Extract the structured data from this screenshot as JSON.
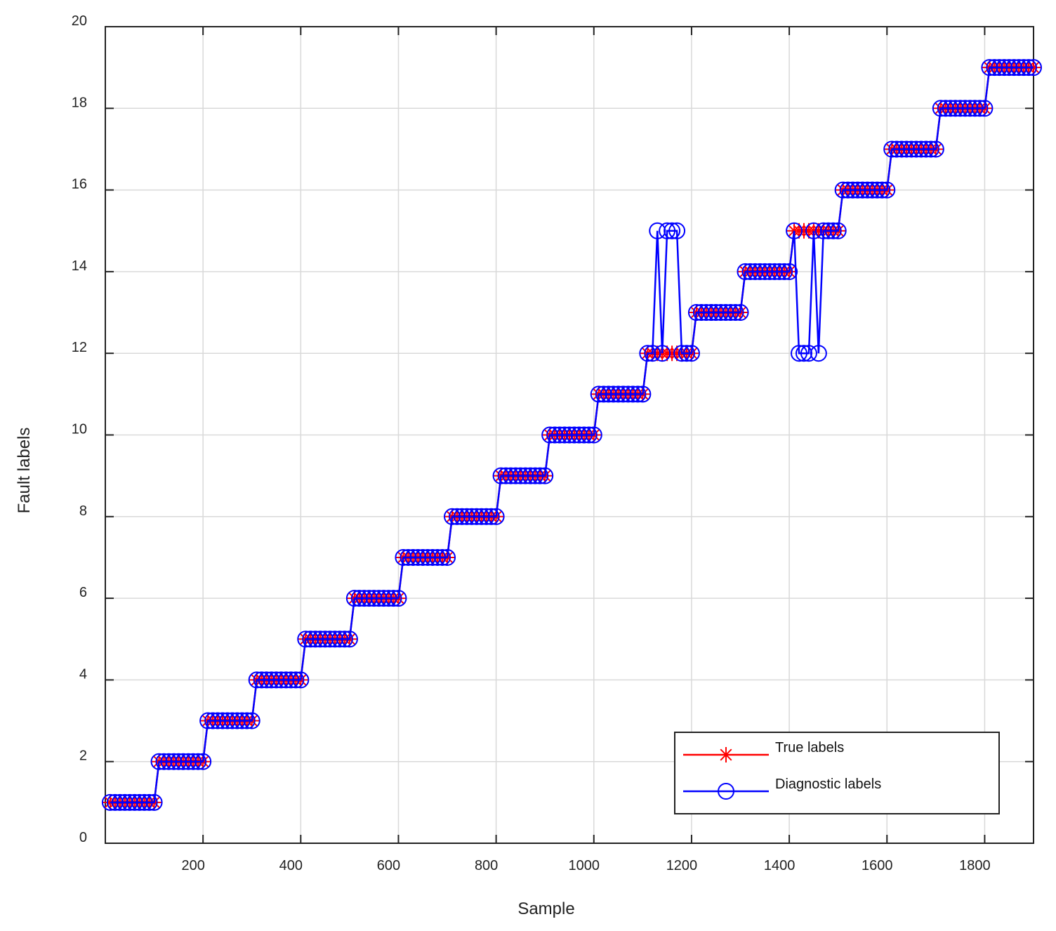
{
  "chart_data": {
    "type": "line",
    "xlabel": "Sample",
    "ylabel": "Fault labels",
    "xlim": [
      0,
      1900
    ],
    "ylim": [
      0,
      20
    ],
    "xticks": [
      200,
      400,
      600,
      800,
      1000,
      1200,
      1400,
      1600,
      1800
    ],
    "yticks": [
      0,
      2,
      4,
      6,
      8,
      10,
      12,
      14,
      16,
      18,
      20
    ],
    "grid": true,
    "legend": "lower right",
    "x": [
      10,
      20,
      30,
      40,
      50,
      60,
      70,
      80,
      90,
      100,
      110,
      120,
      130,
      140,
      150,
      160,
      170,
      180,
      190,
      200,
      210,
      220,
      230,
      240,
      250,
      260,
      270,
      280,
      290,
      300,
      310,
      320,
      330,
      340,
      350,
      360,
      370,
      380,
      390,
      400,
      410,
      420,
      430,
      440,
      450,
      460,
      470,
      480,
      490,
      500,
      510,
      520,
      530,
      540,
      550,
      560,
      570,
      580,
      590,
      600,
      610,
      620,
      630,
      640,
      650,
      660,
      670,
      680,
      690,
      700,
      710,
      720,
      730,
      740,
      750,
      760,
      770,
      780,
      790,
      800,
      810,
      820,
      830,
      840,
      850,
      860,
      870,
      880,
      890,
      900,
      910,
      920,
      930,
      940,
      950,
      960,
      970,
      980,
      990,
      1000,
      1010,
      1020,
      1030,
      1040,
      1050,
      1060,
      1070,
      1080,
      1090,
      1100,
      1110,
      1120,
      1130,
      1140,
      1150,
      1160,
      1170,
      1180,
      1190,
      1200,
      1210,
      1220,
      1230,
      1240,
      1250,
      1260,
      1270,
      1280,
      1290,
      1300,
      1310,
      1320,
      1330,
      1340,
      1350,
      1360,
      1370,
      1380,
      1390,
      1400,
      1410,
      1420,
      1430,
      1440,
      1450,
      1460,
      1470,
      1480,
      1490,
      1500,
      1510,
      1520,
      1530,
      1540,
      1550,
      1560,
      1570,
      1580,
      1590,
      1600,
      1610,
      1620,
      1630,
      1640,
      1650,
      1660,
      1670,
      1680,
      1690,
      1700,
      1710,
      1720,
      1730,
      1740,
      1750,
      1760,
      1770,
      1780,
      1790,
      1800,
      1810,
      1820,
      1830,
      1840,
      1850,
      1860,
      1870,
      1880,
      1890,
      1900
    ],
    "series": [
      {
        "name": "True labels",
        "color": "#ff0000",
        "marker": "asterisk",
        "values": [
          1,
          1,
          1,
          1,
          1,
          1,
          1,
          1,
          1,
          1,
          2,
          2,
          2,
          2,
          2,
          2,
          2,
          2,
          2,
          2,
          3,
          3,
          3,
          3,
          3,
          3,
          3,
          3,
          3,
          3,
          4,
          4,
          4,
          4,
          4,
          4,
          4,
          4,
          4,
          4,
          5,
          5,
          5,
          5,
          5,
          5,
          5,
          5,
          5,
          5,
          6,
          6,
          6,
          6,
          6,
          6,
          6,
          6,
          6,
          6,
          7,
          7,
          7,
          7,
          7,
          7,
          7,
          7,
          7,
          7,
          8,
          8,
          8,
          8,
          8,
          8,
          8,
          8,
          8,
          8,
          9,
          9,
          9,
          9,
          9,
          9,
          9,
          9,
          9,
          9,
          10,
          10,
          10,
          10,
          10,
          10,
          10,
          10,
          10,
          10,
          11,
          11,
          11,
          11,
          11,
          11,
          11,
          11,
          11,
          11,
          12,
          12,
          12,
          12,
          12,
          12,
          12,
          12,
          12,
          12,
          13,
          13,
          13,
          13,
          13,
          13,
          13,
          13,
          13,
          13,
          14,
          14,
          14,
          14,
          14,
          14,
          14,
          14,
          14,
          14,
          15,
          15,
          15,
          15,
          15,
          15,
          15,
          15,
          15,
          15,
          16,
          16,
          16,
          16,
          16,
          16,
          16,
          16,
          16,
          16,
          17,
          17,
          17,
          17,
          17,
          17,
          17,
          17,
          17,
          17,
          18,
          18,
          18,
          18,
          18,
          18,
          18,
          18,
          18,
          18,
          19,
          19,
          19,
          19,
          19,
          19,
          19,
          19,
          19,
          19
        ]
      },
      {
        "name": "Diagnostic labels",
        "color": "#0000ff",
        "marker": "circle",
        "values": [
          1,
          1,
          1,
          1,
          1,
          1,
          1,
          1,
          1,
          1,
          2,
          2,
          2,
          2,
          2,
          2,
          2,
          2,
          2,
          2,
          3,
          3,
          3,
          3,
          3,
          3,
          3,
          3,
          3,
          3,
          4,
          4,
          4,
          4,
          4,
          4,
          4,
          4,
          4,
          4,
          5,
          5,
          5,
          5,
          5,
          5,
          5,
          5,
          5,
          5,
          6,
          6,
          6,
          6,
          6,
          6,
          6,
          6,
          6,
          6,
          7,
          7,
          7,
          7,
          7,
          7,
          7,
          7,
          7,
          7,
          8,
          8,
          8,
          8,
          8,
          8,
          8,
          8,
          8,
          8,
          9,
          9,
          9,
          9,
          9,
          9,
          9,
          9,
          9,
          9,
          10,
          10,
          10,
          10,
          10,
          10,
          10,
          10,
          10,
          10,
          11,
          11,
          11,
          11,
          11,
          11,
          11,
          11,
          11,
          11,
          12,
          12,
          15,
          12,
          15,
          15,
          15,
          12,
          12,
          12,
          13,
          13,
          13,
          13,
          13,
          13,
          13,
          13,
          13,
          13,
          14,
          14,
          14,
          14,
          14,
          14,
          14,
          14,
          14,
          14,
          15,
          12,
          12,
          12,
          15,
          12,
          15,
          15,
          15,
          15,
          16,
          16,
          16,
          16,
          16,
          16,
          16,
          16,
          16,
          16,
          17,
          17,
          17,
          17,
          17,
          17,
          17,
          17,
          17,
          17,
          18,
          18,
          18,
          18,
          18,
          18,
          18,
          18,
          18,
          18,
          19,
          19,
          19,
          19,
          19,
          19,
          19,
          19,
          19,
          19
        ]
      }
    ]
  }
}
